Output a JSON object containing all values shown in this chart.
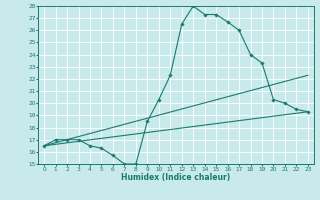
{
  "xlabel": "Humidex (Indice chaleur)",
  "bg_color": "#c8eaea",
  "grid_color": "#ffffff",
  "line_color": "#1a7a6e",
  "xlim": [
    -0.5,
    23.5
  ],
  "ylim": [
    15,
    28
  ],
  "yticks": [
    15,
    16,
    17,
    18,
    19,
    20,
    21,
    22,
    23,
    24,
    25,
    26,
    27,
    28
  ],
  "xticks": [
    0,
    1,
    2,
    3,
    4,
    5,
    6,
    7,
    8,
    9,
    10,
    11,
    12,
    13,
    14,
    15,
    16,
    17,
    18,
    19,
    20,
    21,
    22,
    23
  ],
  "series1_x": [
    0,
    1,
    2,
    3,
    4,
    5,
    6,
    7,
    8,
    9,
    10,
    11,
    12,
    13,
    14,
    15,
    16,
    17,
    18,
    19,
    20,
    21,
    22,
    23
  ],
  "series1_y": [
    16.5,
    17.0,
    17.0,
    17.0,
    16.5,
    16.3,
    15.7,
    15.0,
    15.0,
    18.5,
    20.3,
    22.3,
    26.5,
    28.0,
    27.3,
    27.3,
    26.7,
    26.0,
    24.0,
    23.3,
    20.3,
    20.0,
    19.5,
    19.3
  ],
  "series2_x": [
    0,
    23
  ],
  "series2_y": [
    16.5,
    19.3
  ],
  "series3_x": [
    0,
    23
  ],
  "series3_y": [
    16.5,
    22.3
  ]
}
